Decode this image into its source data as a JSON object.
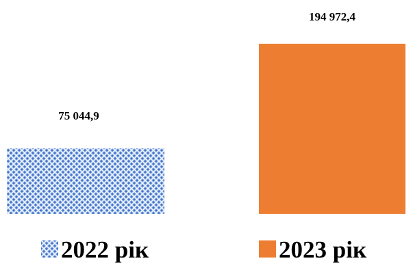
{
  "chart_data": {
    "type": "bar",
    "categories": [
      "2022 рік",
      "2023 рік"
    ],
    "values": [
      75044.9,
      194972.4
    ],
    "data_labels": [
      "75 044,9",
      "194 972,4"
    ],
    "ylim": [
      0,
      194972.4
    ],
    "grid": false,
    "legend_position": "bottom",
    "title": "",
    "xlabel": "",
    "ylabel": "",
    "series_styles": [
      {
        "fill": "#5b8fd9",
        "pattern": "crosshatch-dots",
        "background": "#a9c6f0"
      },
      {
        "fill": "#ed7d31",
        "pattern": "solid"
      }
    ]
  }
}
